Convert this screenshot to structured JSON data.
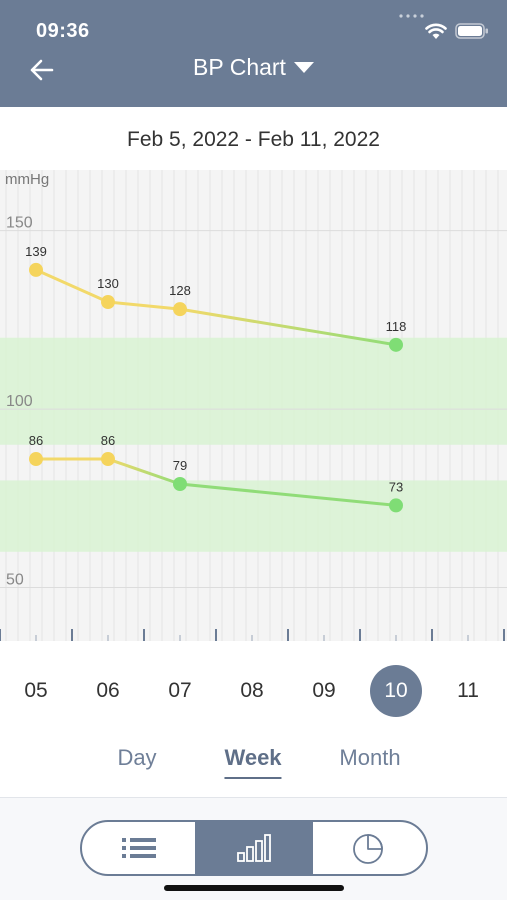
{
  "status_bar": {
    "time": "09:36"
  },
  "header": {
    "title": "BP Chart"
  },
  "date_range": "Feb 5, 2022 - Feb 11, 2022",
  "days": [
    {
      "label": "05",
      "selected": false
    },
    {
      "label": "06",
      "selected": false
    },
    {
      "label": "07",
      "selected": false
    },
    {
      "label": "08",
      "selected": false
    },
    {
      "label": "09",
      "selected": false
    },
    {
      "label": "10",
      "selected": true
    },
    {
      "label": "11",
      "selected": false
    }
  ],
  "periods": [
    {
      "label": "Day",
      "active": false
    },
    {
      "label": "Week",
      "active": true
    },
    {
      "label": "Month",
      "active": false
    }
  ],
  "bottom_tabs": [
    {
      "name": "list-icon",
      "active": false
    },
    {
      "name": "bar-chart-icon",
      "active": true
    },
    {
      "name": "pie-chart-icon",
      "active": false
    }
  ],
  "colors": {
    "header": "#6b7c95",
    "line_elevated": "#f2d96a",
    "line_normal": "#90dc78",
    "point_elevated": "#f5d45c",
    "point_normal": "#7fdd75",
    "normal_band": "#d8f2d2"
  },
  "chart_data": {
    "type": "line",
    "ylabel": "mmHg",
    "y_ticks": [
      50,
      100,
      150
    ],
    "ylim": [
      35,
      167
    ],
    "x": [
      "05",
      "06",
      "07",
      "08",
      "09",
      "10",
      "11"
    ],
    "normal_ranges": [
      [
        90,
        120
      ],
      [
        60,
        80
      ]
    ],
    "series": [
      {
        "values": [
          139,
          130,
          128,
          null,
          null,
          118,
          null
        ],
        "point_status": [
          "elevated",
          "elevated",
          "elevated",
          null,
          null,
          "normal",
          null
        ]
      },
      {
        "values": [
          86,
          86,
          79,
          null,
          null,
          73,
          null
        ],
        "point_status": [
          "elevated",
          "elevated",
          "normal",
          null,
          null,
          "normal",
          null
        ]
      }
    ]
  }
}
